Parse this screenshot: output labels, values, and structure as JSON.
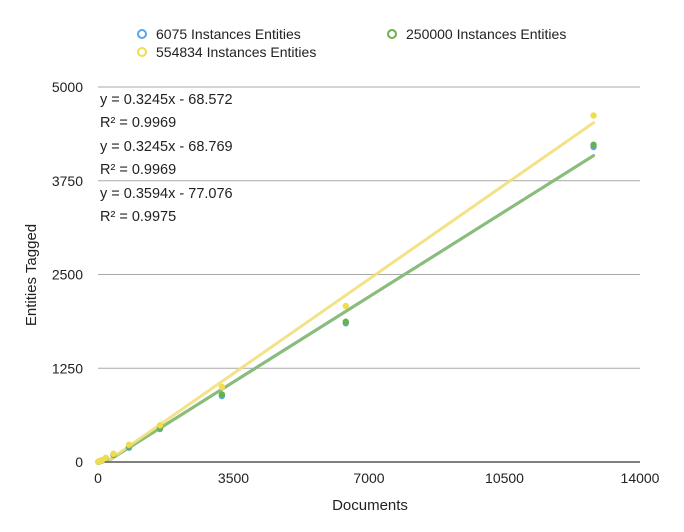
{
  "chart_data": {
    "type": "scatter",
    "title": "",
    "xlabel": "Documents",
    "ylabel": "Entities Tagged",
    "xlim": [
      0,
      14000
    ],
    "ylim": [
      0,
      5000
    ],
    "x_ticks": [
      0,
      3500,
      7000,
      10500,
      14000
    ],
    "y_ticks": [
      0,
      1250,
      2500,
      3750,
      5000
    ],
    "grid": "horizontal",
    "legend_position": "top",
    "series": [
      {
        "name": "6075 Instances Entities",
        "color": "#5aa5e6",
        "trend_color": "#4a95d8",
        "points": [
          [
            12,
            3
          ],
          [
            50,
            10
          ],
          [
            100,
            20
          ],
          [
            200,
            45
          ],
          [
            400,
            95
          ],
          [
            800,
            190
          ],
          [
            1600,
            440
          ],
          [
            3200,
            880
          ],
          [
            6400,
            1850
          ],
          [
            12800,
            4200
          ]
        ],
        "trendline": {
          "slope": 0.3245,
          "intercept": -68.572,
          "x_range": [
            300,
            12800
          ]
        }
      },
      {
        "name": "250000 Instances Entities",
        "color": "#6ab04c",
        "trend_color": "#8fc06a",
        "points": [
          [
            12,
            3
          ],
          [
            50,
            12
          ],
          [
            100,
            22
          ],
          [
            200,
            50
          ],
          [
            400,
            100
          ],
          [
            800,
            210
          ],
          [
            1600,
            455
          ],
          [
            3200,
            900
          ],
          [
            6400,
            1870
          ],
          [
            12800,
            4230
          ]
        ],
        "trendline": {
          "slope": 0.3245,
          "intercept": -68.769,
          "x_range": [
            300,
            12800
          ]
        }
      },
      {
        "name": "554834 Instances Entities",
        "color": "#f0dc50",
        "trend_color": "#f2df7a",
        "points": [
          [
            12,
            4
          ],
          [
            50,
            13
          ],
          [
            100,
            25
          ],
          [
            200,
            55
          ],
          [
            400,
            110
          ],
          [
            800,
            230
          ],
          [
            1600,
            490
          ],
          [
            3200,
            1000
          ],
          [
            6400,
            2080
          ],
          [
            12800,
            4620
          ]
        ],
        "trendline": {
          "slope": 0.3594,
          "intercept": -77.076,
          "x_range": [
            300,
            12800
          ]
        }
      }
    ],
    "annotations": [
      {
        "series": "6075 Instances Entities",
        "equation": "y = 0.3245x - 68.572",
        "r2": "R² = 0.9969"
      },
      {
        "series": "250000 Instances Entities",
        "equation": "y = 0.3245x - 68.769",
        "r2": "R² = 0.9969"
      },
      {
        "series": "554834 Instances Entities",
        "equation": "y = 0.3594x - 77.076",
        "r2": "R² = 0.9975"
      }
    ]
  }
}
